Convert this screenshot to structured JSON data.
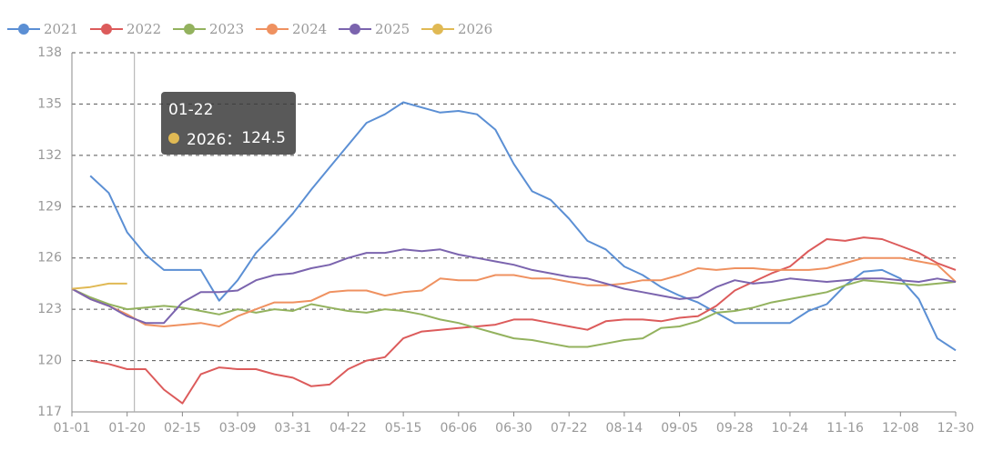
{
  "chart_data": {
    "type": "line",
    "categories": [
      "01-01",
      null,
      null,
      "01-20",
      null,
      null,
      "02-15",
      null,
      null,
      "03-09",
      null,
      null,
      "03-31",
      null,
      null,
      "04-22",
      null,
      null,
      "05-15",
      null,
      null,
      "06-06",
      null,
      null,
      "06-30",
      null,
      null,
      "07-22",
      null,
      null,
      "08-14",
      null,
      null,
      "09-05",
      null,
      null,
      "09-28",
      null,
      null,
      "10-24",
      null,
      null,
      "11-16",
      null,
      null,
      "12-08",
      null,
      null,
      "12-30"
    ],
    "ylim": [
      117,
      138
    ],
    "yticks": [
      117,
      120,
      123,
      126,
      129,
      132,
      135,
      138
    ],
    "grid": true,
    "legend": "top",
    "series": [
      {
        "name": "2021",
        "color": "#5b8fd4",
        "values": [
          null,
          130.8,
          129.8,
          127.5,
          126.2,
          125.3,
          125.3,
          125.3,
          123.5,
          124.7,
          126.3,
          127.4,
          128.6,
          130.0,
          131.3,
          132.6,
          133.9,
          134.4,
          135.1,
          134.8,
          134.5,
          134.6,
          134.4,
          133.5,
          131.5,
          129.9,
          129.4,
          128.3,
          127.0,
          126.5,
          125.5,
          125.0,
          124.3,
          123.8,
          123.4,
          122.8,
          122.2,
          122.2,
          122.2,
          122.2,
          122.9,
          123.3,
          124.4,
          125.2,
          125.3,
          124.8,
          123.6,
          121.3,
          120.6
        ]
      },
      {
        "name": "2022",
        "color": "#dc5b5b",
        "values": [
          null,
          120.0,
          119.8,
          119.5,
          119.5,
          118.3,
          117.5,
          119.2,
          119.6,
          119.5,
          119.5,
          119.2,
          119.0,
          118.5,
          118.6,
          119.5,
          120.0,
          120.2,
          121.3,
          121.7,
          121.8,
          121.9,
          122.0,
          122.1,
          122.4,
          122.4,
          122.2,
          122.0,
          121.8,
          122.3,
          122.4,
          122.4,
          122.3,
          122.5,
          122.6,
          123.2,
          124.1,
          124.6,
          125.1,
          125.5,
          126.4,
          127.1,
          127.0,
          127.2,
          127.1,
          126.7,
          126.3,
          125.7,
          125.3
        ]
      },
      {
        "name": "2023",
        "color": "#93b25e",
        "values": [
          124.2,
          123.7,
          123.3,
          123.0,
          123.1,
          123.2,
          123.1,
          122.9,
          122.7,
          123.0,
          122.8,
          123.0,
          122.9,
          123.3,
          123.1,
          122.9,
          122.8,
          123.0,
          122.9,
          122.7,
          122.4,
          122.2,
          121.9,
          121.6,
          121.3,
          121.2,
          121.0,
          120.8,
          120.8,
          121.0,
          121.2,
          121.3,
          121.9,
          122.0,
          122.3,
          122.8,
          122.9,
          123.1,
          123.4,
          123.6,
          123.8,
          124.0,
          124.4,
          124.7,
          124.6,
          124.5,
          124.4,
          124.5,
          124.6
        ]
      },
      {
        "name": "2024",
        "color": "#ef9160",
        "values": [
          124.2,
          123.6,
          123.2,
          122.7,
          122.1,
          122.0,
          122.1,
          122.2,
          122.0,
          122.6,
          123.0,
          123.4,
          123.4,
          123.5,
          124.0,
          124.1,
          124.1,
          123.8,
          124.0,
          124.1,
          124.8,
          124.7,
          124.7,
          125.0,
          125.0,
          124.8,
          124.8,
          124.6,
          124.4,
          124.4,
          124.5,
          124.7,
          124.7,
          125.0,
          125.4,
          125.3,
          125.4,
          125.4,
          125.3,
          125.3,
          125.3,
          125.4,
          125.7,
          126.0,
          126.0,
          126.0,
          125.8,
          125.6,
          124.6
        ]
      },
      {
        "name": "2025",
        "color": "#7b64ae",
        "values": [
          124.2,
          123.6,
          123.2,
          122.6,
          122.2,
          122.2,
          123.4,
          124.0,
          124.0,
          124.1,
          124.7,
          125.0,
          125.1,
          125.4,
          125.6,
          126.0,
          126.3,
          126.3,
          126.5,
          126.4,
          126.5,
          126.2,
          126.0,
          125.8,
          125.6,
          125.3,
          125.1,
          124.9,
          124.8,
          124.5,
          124.2,
          124.0,
          123.8,
          123.6,
          123.7,
          124.3,
          124.7,
          124.5,
          124.6,
          124.8,
          124.7,
          124.6,
          124.7,
          124.8,
          124.8,
          124.7,
          124.6,
          124.8,
          124.6
        ]
      },
      {
        "name": "2026",
        "color": "#e0b954",
        "values": [
          124.2,
          124.3,
          124.5,
          124.5,
          null,
          null,
          null,
          null,
          null,
          null,
          null,
          null,
          null,
          null,
          null,
          null,
          null,
          null,
          null,
          null,
          null,
          null,
          null,
          null,
          null,
          null,
          null,
          null,
          null,
          null,
          null,
          null,
          null,
          null,
          null,
          null,
          null,
          null,
          null,
          null,
          null,
          null,
          null,
          null,
          null,
          null,
          null,
          null,
          null
        ]
      }
    ],
    "tooltip": {
      "title": "01-22",
      "items": [
        {
          "label": "2026：",
          "value": 124.5
        }
      ]
    }
  }
}
